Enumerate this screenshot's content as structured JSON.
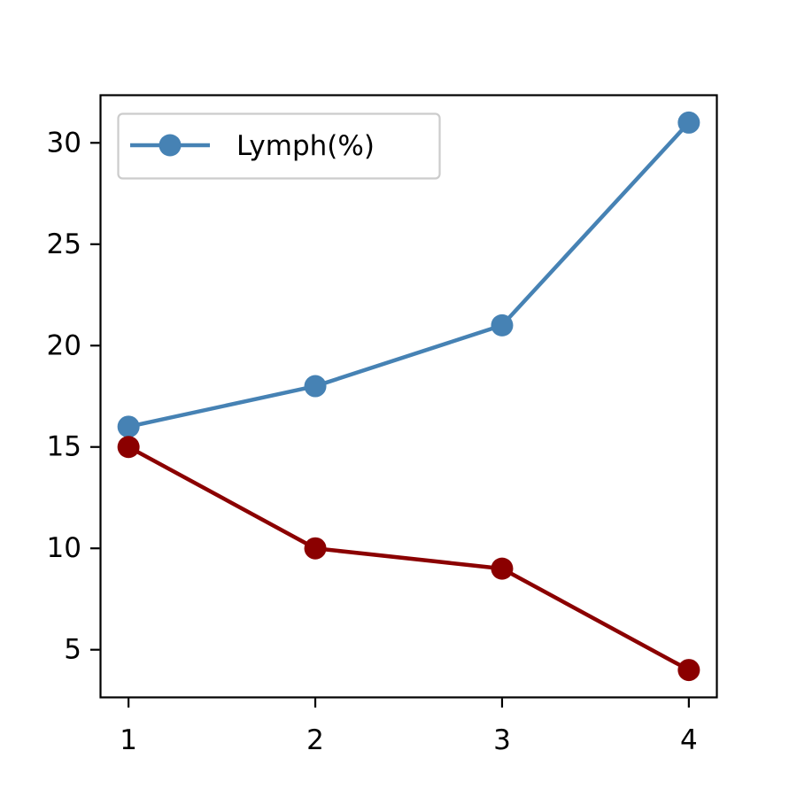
{
  "chart_data": {
    "type": "line",
    "x": [
      1,
      2,
      3,
      4
    ],
    "series": [
      {
        "name": "Lymph(%)",
        "values": [
          16,
          18,
          21,
          31
        ],
        "color": "#4682b4",
        "in_legend": true
      },
      {
        "values": [
          15,
          10,
          9,
          4
        ],
        "color": "#8b0000",
        "in_legend": false
      }
    ],
    "xticks": [
      "1",
      "2",
      "3",
      "4"
    ],
    "yticks": [
      "5",
      "10",
      "15",
      "20",
      "25",
      "30"
    ],
    "xlim": [
      0.85,
      4.15
    ],
    "ylim": [
      2.65,
      32.35
    ],
    "grid": false,
    "legend_position": "top-left",
    "marker": "circle"
  }
}
